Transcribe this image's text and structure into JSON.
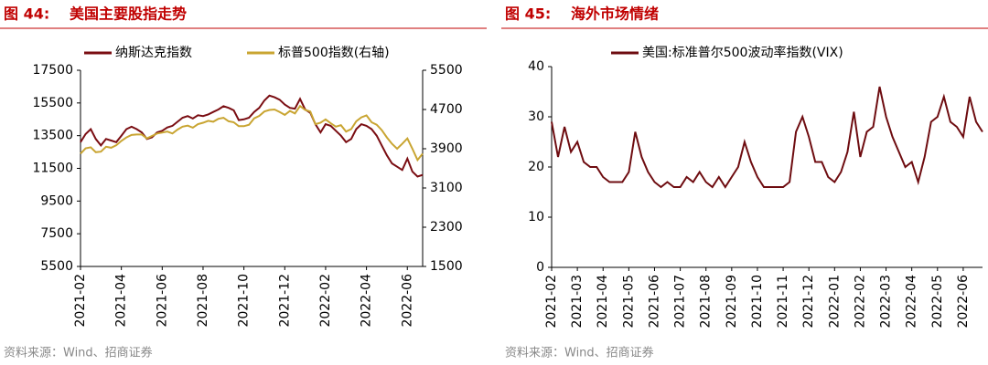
{
  "chart_data": [
    {
      "type": "line",
      "figure_label": "图 44:",
      "title": "美国主要股指走势",
      "source": "资料来源：Wind、招商证券",
      "categories": [
        "2021-02",
        null,
        null,
        null,
        null,
        null,
        null,
        null,
        "2021-04",
        null,
        null,
        null,
        null,
        null,
        null,
        null,
        "2021-06",
        null,
        null,
        null,
        null,
        null,
        null,
        null,
        "2021-08",
        null,
        null,
        null,
        null,
        null,
        null,
        null,
        "2021-10",
        null,
        null,
        null,
        null,
        null,
        null,
        null,
        "2021-12",
        null,
        null,
        null,
        null,
        null,
        null,
        null,
        "2022-02",
        null,
        null,
        null,
        null,
        null,
        null,
        null,
        "2022-04",
        null,
        null,
        null,
        null,
        null,
        null,
        null,
        "2022-06",
        null,
        null,
        null
      ],
      "series": [
        {
          "name": "纳斯达克指数",
          "color": "#7a0d12",
          "values": [
            13100,
            13600,
            13900,
            13300,
            12900,
            13300,
            13200,
            13100,
            13500,
            13900,
            14050,
            13900,
            13700,
            13300,
            13400,
            13700,
            13800,
            14000,
            14100,
            14350,
            14600,
            14700,
            14550,
            14750,
            14700,
            14800,
            14950,
            15100,
            15300,
            15200,
            15050,
            14450,
            14500,
            14600,
            14950,
            15200,
            15650,
            15950,
            15850,
            15700,
            15400,
            15200,
            15150,
            15750,
            15100,
            14900,
            14200,
            13700,
            14200,
            14100,
            13800,
            13500,
            13100,
            13300,
            13900,
            14200,
            14100,
            13900,
            13500,
            12900,
            12300,
            11800,
            11600,
            11400,
            12100,
            11300,
            11000,
            11100
          ]
        },
        {
          "name": "标普500指数(右轴)",
          "color": "#c9a532",
          "axis": "y2",
          "values": [
            3800,
            3910,
            3930,
            3830,
            3840,
            3940,
            3920,
            3970,
            4060,
            4130,
            4180,
            4190,
            4190,
            4110,
            4160,
            4210,
            4230,
            4250,
            4210,
            4290,
            4350,
            4370,
            4330,
            4400,
            4430,
            4470,
            4450,
            4510,
            4530,
            4460,
            4440,
            4360,
            4360,
            4390,
            4520,
            4570,
            4660,
            4690,
            4700,
            4650,
            4590,
            4670,
            4620,
            4770,
            4690,
            4660,
            4400,
            4430,
            4500,
            4420,
            4350,
            4380,
            4250,
            4300,
            4460,
            4540,
            4580,
            4440,
            4390,
            4280,
            4130,
            4000,
            3900,
            4000,
            4110,
            3900,
            3670,
            3800
          ]
        }
      ],
      "ylim": [
        5500,
        17500
      ],
      "yticks": [
        5500,
        7500,
        9500,
        11500,
        13500,
        15500,
        17500
      ],
      "y2lim": [
        1500,
        5500
      ],
      "y2ticks": [
        1500,
        2300,
        3100,
        3900,
        4700,
        5500
      ],
      "grid": false
    },
    {
      "type": "line",
      "figure_label": "图 45:",
      "title": "海外市场情绪",
      "source": "资料来源：Wind、招商证券",
      "categories": [
        "2021-02",
        null,
        null,
        null,
        "2021-03",
        null,
        null,
        null,
        "2021-04",
        null,
        null,
        null,
        "2021-05",
        null,
        null,
        null,
        "2021-06",
        null,
        null,
        null,
        "2021-07",
        null,
        null,
        null,
        "2021-08",
        null,
        null,
        null,
        "2021-09",
        null,
        null,
        null,
        "2021-10",
        null,
        null,
        null,
        "2021-11",
        null,
        null,
        null,
        "2021-12",
        null,
        null,
        null,
        "2022-01",
        null,
        null,
        null,
        "2022-02",
        null,
        null,
        null,
        "2022-03",
        null,
        null,
        null,
        "2022-04",
        null,
        null,
        null,
        "2022-05",
        null,
        null,
        null,
        "2022-06",
        null,
        null,
        null
      ],
      "series": [
        {
          "name": "美国:标准普尔500波动率指数(VIX)",
          "color": "#6e0c10",
          "values": [
            29,
            22,
            28,
            23,
            25,
            21,
            20,
            20,
            18,
            17,
            17,
            17,
            19,
            27,
            22,
            19,
            17,
            16,
            17,
            16,
            16,
            18,
            17,
            19,
            17,
            16,
            18,
            16,
            18,
            20,
            25,
            21,
            18,
            16,
            16,
            16,
            16,
            17,
            27,
            30,
            26,
            21,
            21,
            18,
            17,
            19,
            23,
            31,
            22,
            27,
            28,
            36,
            30,
            26,
            23,
            20,
            21,
            17,
            22,
            29,
            30,
            34,
            29,
            28,
            26,
            34,
            29,
            27
          ]
        }
      ],
      "ylim": [
        0,
        40
      ],
      "yticks": [
        0,
        10,
        20,
        30,
        40
      ],
      "grid": false
    }
  ]
}
